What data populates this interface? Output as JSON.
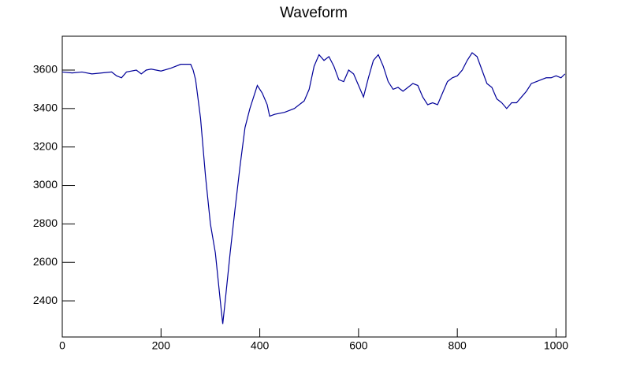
{
  "chart_data": {
    "type": "line",
    "title": "Waveform",
    "x": [
      0,
      20,
      40,
      60,
      80,
      100,
      110,
      120,
      130,
      150,
      160,
      170,
      180,
      200,
      220,
      240,
      260,
      265,
      270,
      280,
      290,
      300,
      310,
      320,
      325,
      330,
      340,
      350,
      360,
      370,
      380,
      390,
      395,
      405,
      415,
      420,
      430,
      450,
      470,
      490,
      500,
      510,
      520,
      530,
      540,
      550,
      560,
      570,
      580,
      590,
      600,
      610,
      620,
      630,
      640,
      650,
      660,
      670,
      680,
      690,
      700,
      710,
      720,
      730,
      740,
      750,
      760,
      770,
      780,
      790,
      800,
      810,
      820,
      830,
      840,
      850,
      860,
      870,
      880,
      890,
      900,
      910,
      920,
      930,
      940,
      950,
      960,
      970,
      980,
      990,
      1000,
      1010,
      1018
    ],
    "series": [
      {
        "name": "waveform",
        "color": "#000099",
        "values": [
          3590,
          3585,
          3590,
          3580,
          3585,
          3590,
          3570,
          3560,
          3590,
          3600,
          3580,
          3600,
          3605,
          3595,
          3610,
          3630,
          3630,
          3600,
          3550,
          3350,
          3050,
          2800,
          2650,
          2400,
          2280,
          2400,
          2650,
          2880,
          3100,
          3300,
          3400,
          3480,
          3520,
          3480,
          3420,
          3360,
          3370,
          3380,
          3400,
          3440,
          3500,
          3620,
          3680,
          3650,
          3670,
          3620,
          3550,
          3540,
          3600,
          3580,
          3520,
          3460,
          3560,
          3650,
          3680,
          3620,
          3540,
          3500,
          3510,
          3490,
          3510,
          3530,
          3520,
          3460,
          3420,
          3430,
          3420,
          3480,
          3540,
          3560,
          3570,
          3600,
          3650,
          3690,
          3670,
          3600,
          3530,
          3510,
          3450,
          3430,
          3400,
          3430,
          3430,
          3460,
          3490,
          3530,
          3540,
          3550,
          3560,
          3560,
          3570,
          3560,
          3580
        ]
      }
    ],
    "xlim": [
      0,
      1020
    ],
    "ylim": [
      2212,
      3776
    ],
    "xticks": [
      0,
      200,
      400,
      600,
      800,
      1000
    ],
    "yticks": [
      2400,
      2600,
      2800,
      3000,
      3200,
      3400,
      3600
    ]
  }
}
